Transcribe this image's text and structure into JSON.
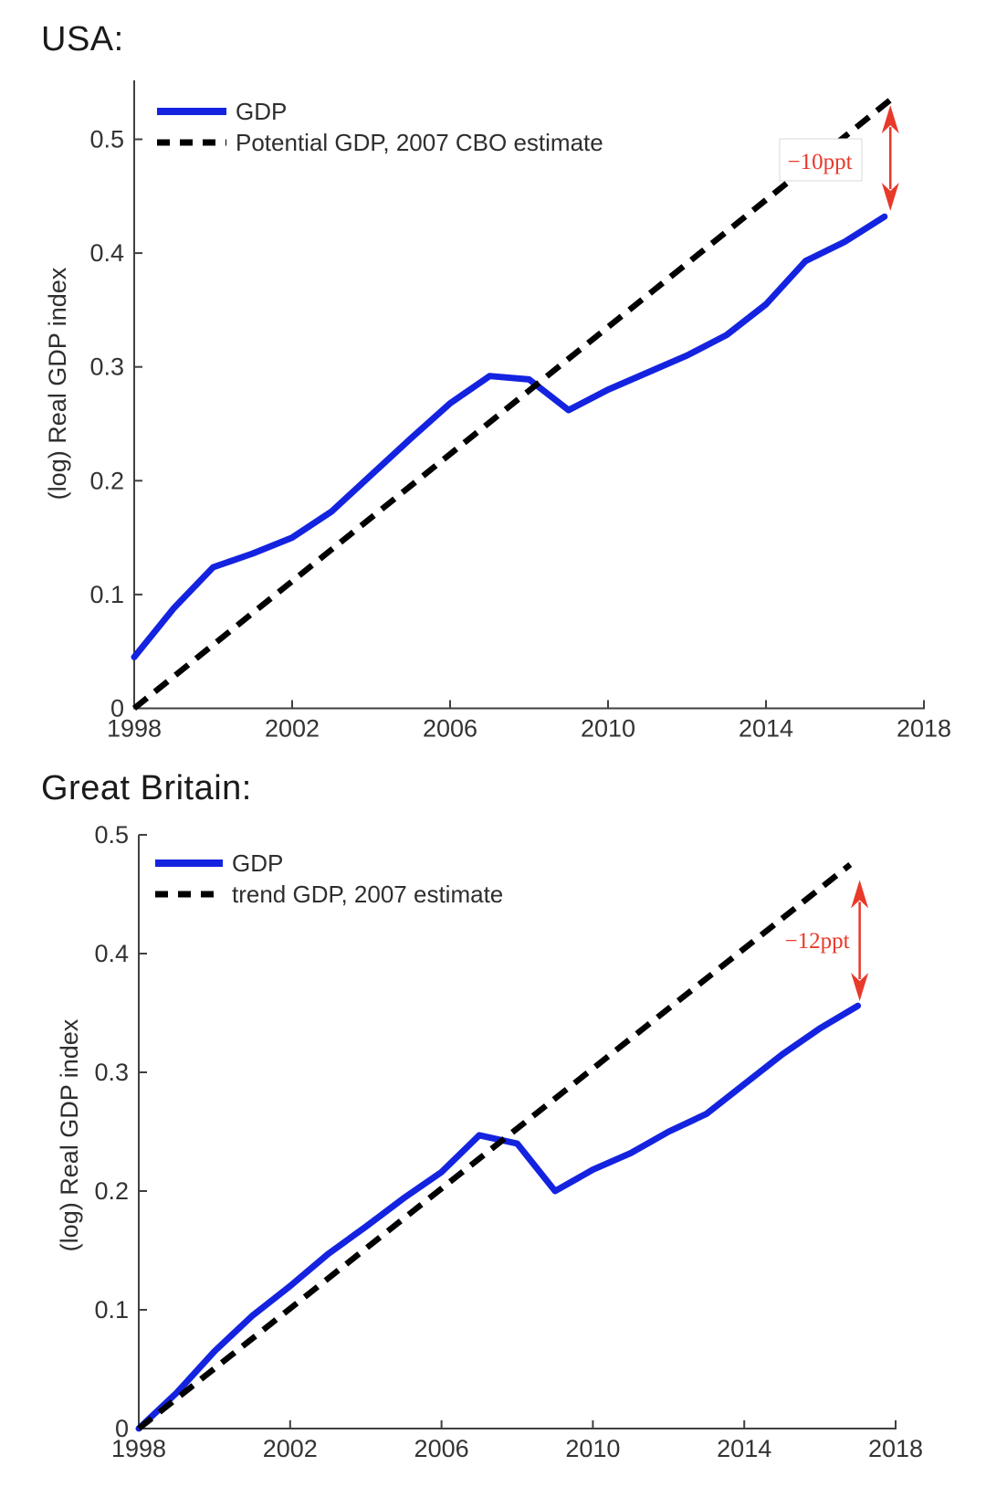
{
  "page": {
    "background": "#ffffff"
  },
  "chart_data": [
    {
      "type": "line",
      "title": "USA:",
      "xlabel": "",
      "ylabel": "(log) Real GDP index",
      "xlim": [
        1998,
        2018
      ],
      "ylim": [
        0,
        0.552
      ],
      "xticks": [
        1998,
        2002,
        2006,
        2010,
        2014,
        2018
      ],
      "yticks": [
        0,
        0.1,
        0.2,
        0.3,
        0.4,
        0.5
      ],
      "grid": false,
      "legend_position": "top-left-inside",
      "series": [
        {
          "name": "GDP",
          "color": "#1423E0",
          "dash": "solid",
          "x": [
            1998,
            1999,
            2000,
            2001,
            2002,
            2003,
            2004,
            2005,
            2006,
            2007,
            2008,
            2009,
            2010,
            2011,
            2012,
            2013,
            2014,
            2015,
            2016,
            2017
          ],
          "y": [
            0.045,
            0.088,
            0.124,
            0.136,
            0.15,
            0.173,
            0.205,
            0.237,
            0.268,
            0.292,
            0.289,
            0.262,
            0.28,
            0.295,
            0.31,
            0.328,
            0.355,
            0.393,
            0.41,
            0.432
          ]
        },
        {
          "name": "Potential GDP, 2007 CBO estimate",
          "color": "#000000",
          "dash": "dashed",
          "x": [
            1998,
            2017.2
          ],
          "y": [
            0,
            0.536
          ]
        }
      ],
      "annotation": {
        "label": "−10ppt",
        "color": "#E8392B",
        "arrow_x": 2017.15,
        "arrow_y_top": 0.53,
        "arrow_y_bottom": 0.437,
        "boxed": true
      }
    },
    {
      "type": "line",
      "title": "Great Britain:",
      "xlabel": "",
      "ylabel": "(log) Real GDP index",
      "xlim": [
        1998,
        2018
      ],
      "ylim": [
        0,
        0.5
      ],
      "xticks": [
        1998,
        2002,
        2006,
        2010,
        2014,
        2018
      ],
      "yticks": [
        0,
        0.1,
        0.2,
        0.3,
        0.4,
        0.5
      ],
      "grid": false,
      "legend_position": "top-left-inside",
      "series": [
        {
          "name": "GDP",
          "color": "#1423E0",
          "dash": "solid",
          "x": [
            1998,
            1999,
            2000,
            2001,
            2002,
            2003,
            2004,
            2005,
            2006,
            2007,
            2008,
            2009,
            2010,
            2011,
            2012,
            2013,
            2014,
            2015,
            2016,
            2017
          ],
          "y": [
            0.0,
            0.03,
            0.065,
            0.095,
            0.12,
            0.147,
            0.17,
            0.194,
            0.216,
            0.247,
            0.24,
            0.2,
            0.218,
            0.232,
            0.25,
            0.265,
            0.29,
            0.315,
            0.337,
            0.356
          ]
        },
        {
          "name": "trend GDP, 2007 estimate",
          "color": "#000000",
          "dash": "dashed",
          "x": [
            1998,
            2016.8
          ],
          "y": [
            0,
            0.475
          ]
        }
      ],
      "annotation": {
        "label": "−12ppt",
        "color": "#E8392B",
        "arrow_x": 2017.05,
        "arrow_y_top": 0.462,
        "arrow_y_bottom": 0.36,
        "boxed": false
      }
    }
  ]
}
